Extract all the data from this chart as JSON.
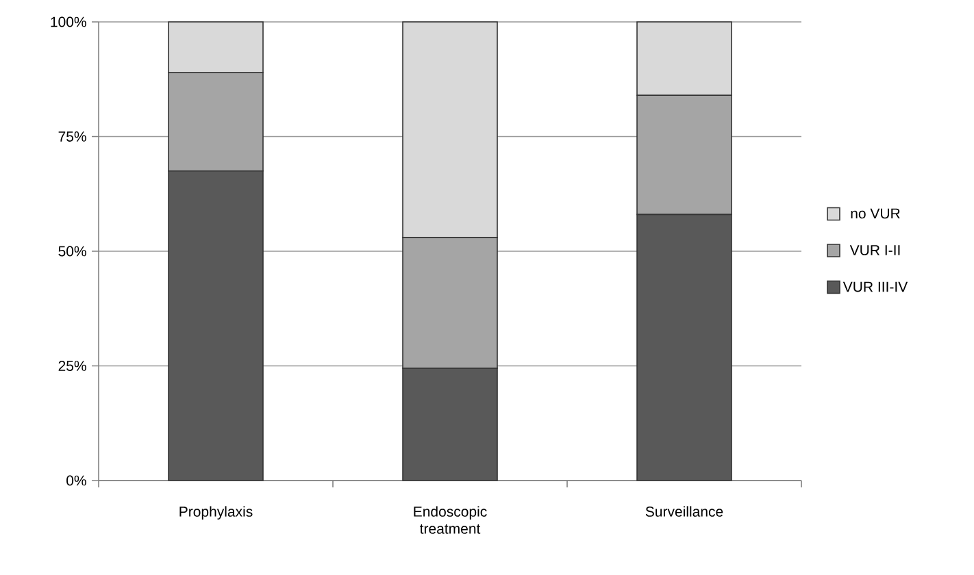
{
  "chart_data": {
    "type": "bar",
    "stacked": true,
    "categories": [
      "Prophylaxis",
      "Endoscopic treatment",
      "Surveillance"
    ],
    "series": [
      {
        "name": "VUR III-IV",
        "color": "#595959",
        "values": [
          67.5,
          24.5,
          58
        ]
      },
      {
        "name": "VUR I-II",
        "color": "#a5a5a5",
        "values": [
          21.5,
          28.5,
          26
        ]
      },
      {
        "name": "no VUR",
        "color": "#d9d9d9",
        "values": [
          11,
          47,
          16
        ]
      }
    ],
    "ylim": [
      0,
      100
    ],
    "yticks": [
      {
        "value": 0,
        "label": "0%"
      },
      {
        "value": 25,
        "label": "25%"
      },
      {
        "value": 50,
        "label": "50%"
      },
      {
        "value": 75,
        "label": "75%"
      },
      {
        "value": 100,
        "label": "100%"
      }
    ],
    "grid": "y",
    "legend": "right"
  }
}
